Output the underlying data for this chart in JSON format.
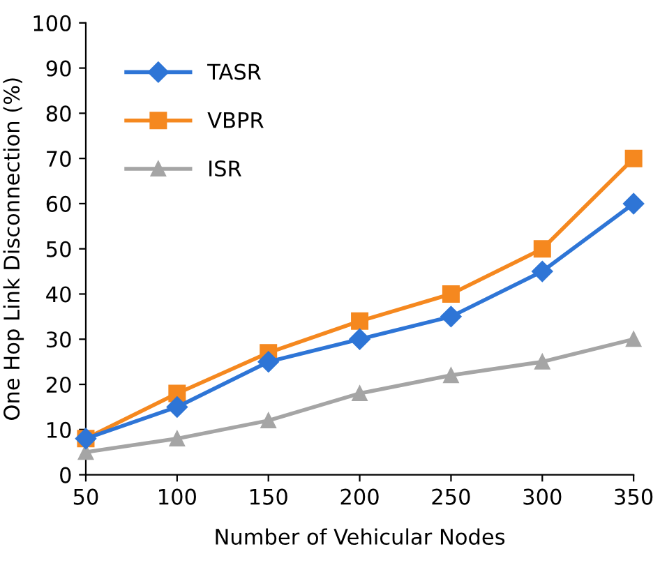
{
  "chart_data": {
    "type": "line",
    "xlabel": "Number of Vehicular Nodes",
    "ylabel": "One Hop Link Disconnection (%)",
    "x": [
      50,
      100,
      150,
      200,
      250,
      300,
      350
    ],
    "xlim": [
      50,
      350
    ],
    "xticks": [
      50,
      100,
      150,
      200,
      250,
      300,
      350
    ],
    "ylim": [
      0,
      100
    ],
    "yticks": [
      0,
      10,
      20,
      30,
      40,
      50,
      60,
      70,
      80,
      90,
      100
    ],
    "grid": false,
    "legend": "top left",
    "line_style": "solid",
    "series": [
      {
        "name": "TASR",
        "color": "#2e75d6",
        "marker": "diamond",
        "values": [
          8,
          15,
          25,
          30,
          35,
          45,
          60
        ]
      },
      {
        "name": "VBPR",
        "color": "#f5881f",
        "marker": "square",
        "values": [
          8,
          18,
          27,
          34,
          40,
          50,
          70
        ]
      },
      {
        "name": "ISR",
        "color": "#a5a5a5",
        "marker": "triangle",
        "values": [
          5,
          8,
          12,
          18,
          22,
          25,
          30
        ]
      }
    ]
  }
}
